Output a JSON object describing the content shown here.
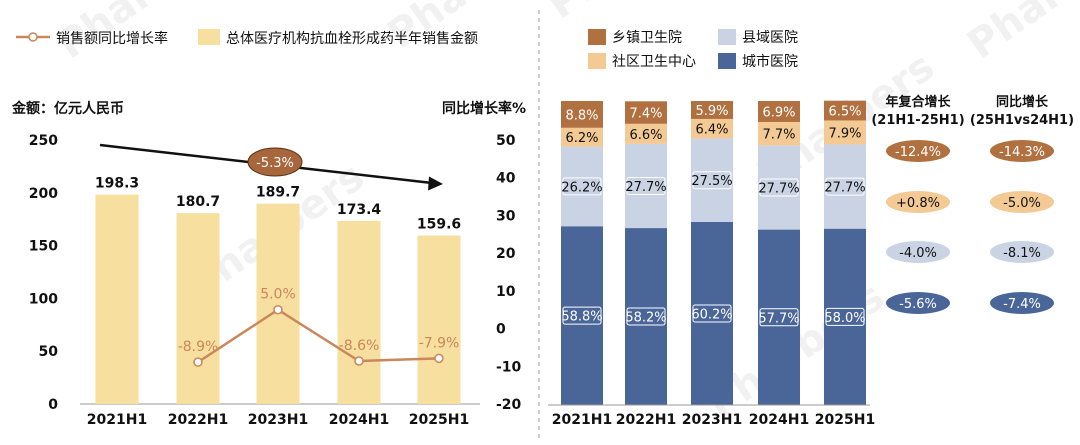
{
  "watermark": "Pharbers",
  "colors": {
    "bar_left": "#f7dfa0",
    "growth_line": "#c9875a",
    "trend_ellipse": "#a8663c",
    "township": "#b1703f",
    "community": "#f3c994",
    "county": "#c9d3e4",
    "city": "#4a6598",
    "divider": "#9a9a9a"
  },
  "chart_data": [
    {
      "type": "bar",
      "title": "",
      "ylabel": "金额：亿元人民币",
      "y2label": "同比增长率%",
      "categories": [
        "2021H1",
        "2022H1",
        "2023H1",
        "2024H1",
        "2025H1"
      ],
      "ylim": [
        0,
        250
      ],
      "yticks": [
        "0",
        "50",
        "100",
        "150",
        "200",
        "250"
      ],
      "y2lim": [
        -20,
        50
      ],
      "y2ticks": [
        "-20",
        "-10",
        "0",
        "10",
        "20",
        "30",
        "40",
        "50"
      ],
      "series": [
        {
          "name": "总体医疗机构抗血栓形成药半年销售金额",
          "kind": "bar",
          "axis": "left",
          "values": [
            198.3,
            180.7,
            189.7,
            173.4,
            159.6
          ],
          "labels": [
            "198.3",
            "180.7",
            "189.7",
            "173.4",
            "159.6"
          ]
        },
        {
          "name": "销售额同比增长率",
          "kind": "line",
          "axis": "right",
          "values": [
            null,
            -8.9,
            5.0,
            -8.6,
            -7.9
          ],
          "labels": [
            "",
            "-8.9%",
            "5.0%",
            "-8.6%",
            "-7.9%"
          ]
        }
      ],
      "trend_label": "-5.3%"
    },
    {
      "type": "bar",
      "stacked": true,
      "percent": true,
      "categories": [
        "2021H1",
        "2022H1",
        "2023H1",
        "2024H1",
        "2025H1"
      ],
      "legend": [
        "乡镇卫生院",
        "县域医院",
        "社区卫生中心",
        "城市医院"
      ],
      "series": [
        {
          "name": "城市医院",
          "key": "city",
          "values": [
            58.8,
            58.2,
            60.2,
            57.7,
            58.0
          ],
          "labels": [
            "58.8%",
            "58.2%",
            "60.2%",
            "57.7%",
            "58.0%"
          ]
        },
        {
          "name": "县域医院",
          "key": "county",
          "values": [
            26.2,
            27.7,
            27.5,
            27.7,
            27.7
          ],
          "labels": [
            "26.2%",
            "27.7%",
            "27.5%",
            "27.7%",
            "27.7%"
          ]
        },
        {
          "name": "社区卫生中心",
          "key": "community",
          "values": [
            6.2,
            6.6,
            6.4,
            7.7,
            7.9
          ],
          "labels": [
            "6.2%",
            "6.6%",
            "6.4%",
            "7.7%",
            "7.9%"
          ]
        },
        {
          "name": "乡镇卫生院",
          "key": "township",
          "values": [
            8.8,
            7.4,
            5.9,
            6.9,
            6.5
          ],
          "labels": [
            "8.8%",
            "7.4%",
            "5.9%",
            "6.9%",
            "6.5%"
          ]
        }
      ]
    }
  ],
  "growth_table": {
    "col1_title": "年复合增长",
    "col1_sub": "(21H1-25H1)",
    "col2_title": "同比增长",
    "col2_sub": "(25H1vs24H1)",
    "rows": [
      {
        "key": "township",
        "cagr": "-12.4%",
        "yoy": "-14.3%"
      },
      {
        "key": "community",
        "cagr": "+0.8%",
        "yoy": "-5.0%"
      },
      {
        "key": "county",
        "cagr": "-4.0%",
        "yoy": "-8.1%"
      },
      {
        "key": "city",
        "cagr": "-5.6%",
        "yoy": "-7.4%"
      }
    ]
  }
}
